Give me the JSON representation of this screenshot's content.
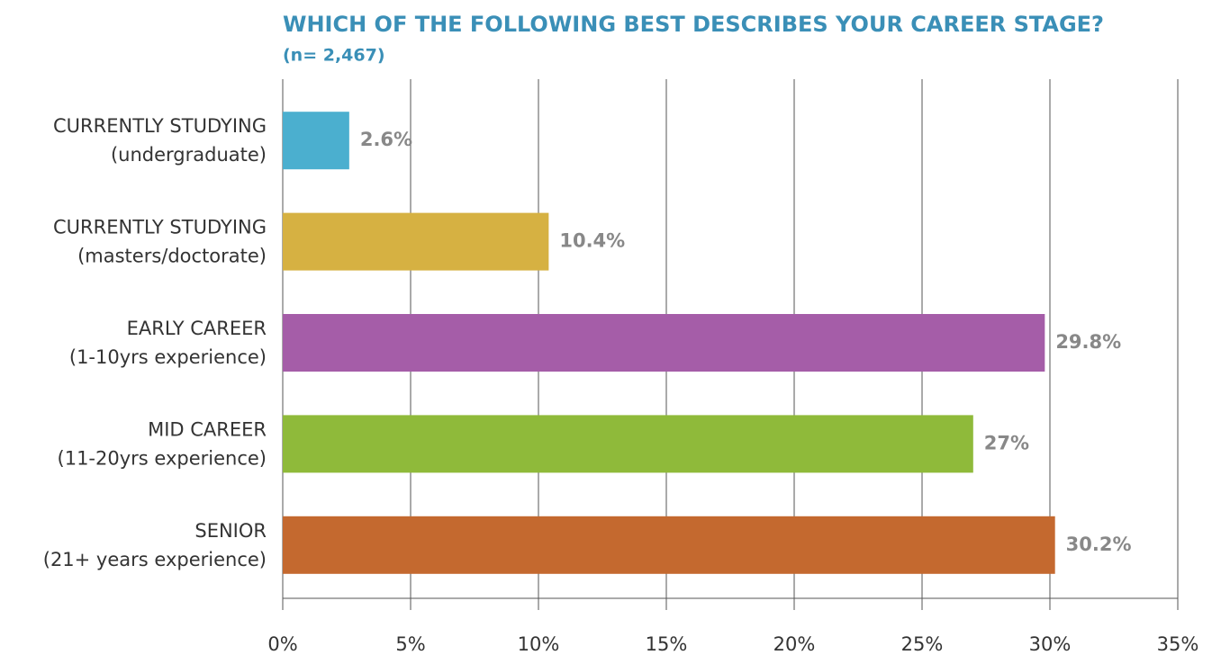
{
  "chart_data": {
    "type": "hbar",
    "title": "WHICH OF THE FOLLOWING BEST DESCRIBES YOUR CAREER STAGE?",
    "subtitle": "(n= 2,467)",
    "categories": [
      [
        "CURRENTLY STUDYING",
        "(undergraduate)"
      ],
      [
        "CURRENTLY STUDYING",
        "(masters/doctorate)"
      ],
      [
        "EARLY CAREER",
        "(1-10yrs experience)"
      ],
      [
        "MID CAREER",
        "(11-20yrs experience)"
      ],
      [
        "SENIOR",
        "(21+ years experience)"
      ]
    ],
    "values": [
      2.6,
      10.4,
      29.8,
      27,
      30.2
    ],
    "value_labels": [
      "2.6%",
      "10.4%",
      "29.8%",
      "27%",
      "30.2%"
    ],
    "colors": [
      "#4bafcf",
      "#d6b142",
      "#a55da8",
      "#8fba3a",
      "#c4692f"
    ],
    "xlim": [
      0,
      35
    ],
    "xticks": [
      {
        "value": 0,
        "label": "0%"
      },
      {
        "value": 5,
        "label": "5%"
      },
      {
        "value": 10,
        "label": "10%"
      },
      {
        "value": 15,
        "label": "15%"
      },
      {
        "value": 20,
        "label": "20%"
      },
      {
        "value": 25,
        "label": "25%"
      },
      {
        "value": 30,
        "label": "30%"
      },
      {
        "value": 35,
        "label": "35%"
      }
    ],
    "grid": true
  }
}
